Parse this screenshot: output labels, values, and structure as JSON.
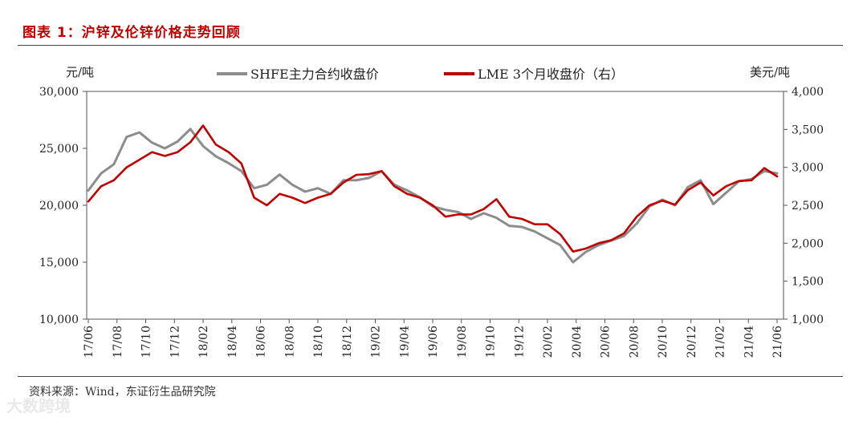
{
  "title": "图表 1：沪锌及伦锌价格走势回顾",
  "source": "资料来源：Wind，东证衍生品研究院",
  "watermark": "大数跨境",
  "chart_data": {
    "type": "line",
    "left_unit": "元/吨",
    "right_unit": "美元/吨",
    "left_ylim": [
      10000,
      30000
    ],
    "right_ylim": [
      1000,
      4000
    ],
    "left_ticks": [
      "10,000",
      "15,000",
      "20,000",
      "25,000",
      "30,000"
    ],
    "right_ticks": [
      "1,000",
      "1,500",
      "2,000",
      "2,500",
      "3,000",
      "3,500",
      "4,000"
    ],
    "x_ticks": [
      "17/06",
      "17/08",
      "17/10",
      "17/12",
      "18/02",
      "18/04",
      "18/06",
      "18/08",
      "18/10",
      "18/12",
      "19/02",
      "19/04",
      "19/06",
      "19/08",
      "19/10",
      "19/12",
      "20/02",
      "20/04",
      "20/06",
      "20/08",
      "20/10",
      "20/12",
      "21/02",
      "21/04",
      "21/06"
    ],
    "colors": {
      "shfe": "#8c8c8c",
      "lme": "#c00000",
      "title": "#c00000"
    },
    "series": [
      {
        "name": "SHFE主力合约收盘价",
        "axis": "left",
        "values": [
          21300,
          22800,
          23600,
          26000,
          26400,
          25500,
          25000,
          25600,
          26700,
          25200,
          24300,
          23700,
          23000,
          21500,
          21800,
          22700,
          21800,
          21200,
          21500,
          21000,
          22200,
          22200,
          22400,
          23000,
          21800,
          21300,
          20700,
          19900,
          19600,
          19400,
          18800,
          19300,
          18900,
          18200,
          18100,
          17700,
          17100,
          16500,
          15000,
          15900,
          16500,
          16900,
          17300,
          18400,
          19900,
          20500,
          20000,
          21600,
          22200,
          20100,
          21100,
          22100,
          22300,
          23000,
          22800
        ]
      },
      {
        "name": "LME 3个月收盘价（右）",
        "axis": "right",
        "values": [
          2550,
          2750,
          2830,
          3000,
          3100,
          3200,
          3150,
          3200,
          3330,
          3550,
          3300,
          3200,
          3050,
          2600,
          2500,
          2650,
          2600,
          2530,
          2600,
          2650,
          2800,
          2900,
          2910,
          2950,
          2750,
          2650,
          2600,
          2500,
          2350,
          2380,
          2380,
          2450,
          2580,
          2350,
          2320,
          2250,
          2250,
          2120,
          1890,
          1930,
          2000,
          2040,
          2130,
          2350,
          2500,
          2560,
          2510,
          2700,
          2800,
          2630,
          2750,
          2820,
          2830,
          2990,
          2880
        ]
      }
    ]
  }
}
